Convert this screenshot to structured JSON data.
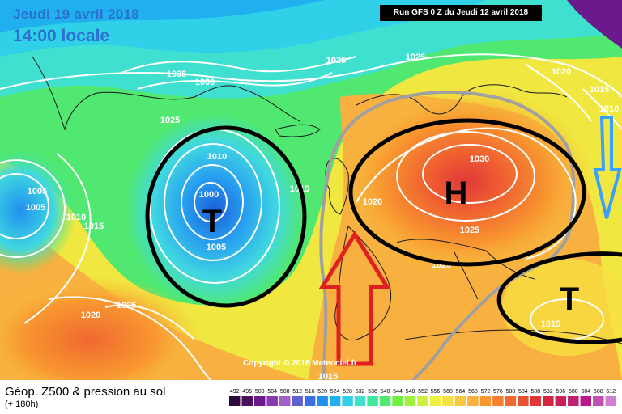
{
  "header": {
    "date": "Jeudi 19 avril 2018",
    "time": "14:00 locale",
    "run": "Run GFS 0 Z du Jeudi 12 avril 2018"
  },
  "copyright": "Copyright © 2018 Meteociel.fr",
  "footer": {
    "title": "Géop. Z500 & pression au sol",
    "subtitle": "(+ 180h)"
  },
  "isobars": [
    "1035",
    "1030",
    "1025",
    "1025",
    "1025",
    "1020",
    "1015",
    "1010",
    "1010",
    "1005",
    "1000",
    "1005",
    "1015",
    "1010",
    "1005",
    "1000",
    "1015",
    "1020",
    "1025",
    "1030",
    "1020",
    "1025",
    "1025",
    "1015",
    "1020",
    "1015"
  ],
  "pressure_systems": [
    {
      "letter": "T",
      "type": "low",
      "color": "#000000"
    },
    {
      "letter": "H",
      "type": "high",
      "color": "#000000"
    },
    {
      "letter": "T",
      "type": "low",
      "color": "#000000"
    }
  ],
  "legend": {
    "values": [
      "492",
      "496",
      "500",
      "504",
      "508",
      "512",
      "516",
      "520",
      "524",
      "528",
      "532",
      "536",
      "540",
      "544",
      "548",
      "552",
      "556",
      "560",
      "564",
      "568",
      "572",
      "576",
      "580",
      "584",
      "588",
      "592",
      "596",
      "600",
      "604",
      "608",
      "612"
    ],
    "colors": [
      "#2a0a38",
      "#4a1060",
      "#6a1a8a",
      "#8a3ab0",
      "#a060c8",
      "#6060d0",
      "#3a70e0",
      "#2090f0",
      "#20b0f0",
      "#30d0e8",
      "#40e0d0",
      "#40e8a0",
      "#50e870",
      "#70f040",
      "#a0f040",
      "#d0f040",
      "#f0f040",
      "#f8e040",
      "#f8c840",
      "#f8b040",
      "#f89830",
      "#f88030",
      "#f06830",
      "#e85030",
      "#e03838",
      "#d02840",
      "#c82058",
      "#c02070",
      "#b8188a",
      "#c050b0",
      "#d080d0"
    ]
  },
  "colors": {
    "accent_text": "#2b6fd0",
    "arrow_red": "#e02020",
    "arrow_blue": "#3aa0ff",
    "low_color": "#000000",
    "high_color": "#000000"
  }
}
